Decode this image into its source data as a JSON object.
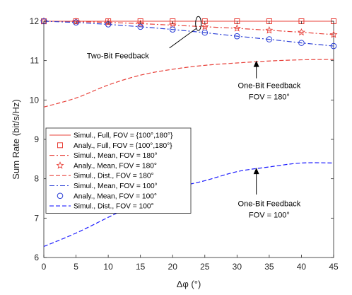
{
  "chart_data": {
    "type": "line",
    "xlabel": "Δφ (°)",
    "ylabel": "Sum Rate (bit/s/Hz)",
    "xlim": [
      0,
      45
    ],
    "ylim": [
      6,
      12
    ],
    "xticks": [
      "0",
      "5",
      "10",
      "15",
      "20",
      "25",
      "30",
      "35",
      "40",
      "45"
    ],
    "yticks": [
      "6",
      "7",
      "8",
      "9",
      "10",
      "11",
      "12"
    ],
    "legend_position": "left",
    "series": [
      {
        "name": "Simul., Full, FOV = {100°,180°}",
        "color": "#e8413a",
        "style": "solid",
        "marker": "none",
        "x": [
          0,
          5,
          10,
          15,
          20,
          25,
          30,
          35,
          40,
          45
        ],
        "y": [
          12,
          12,
          12,
          12,
          12,
          12,
          12,
          12,
          12,
          12
        ]
      },
      {
        "name": "Analy., Full, FOV = {100°,180°}",
        "color": "#e8413a",
        "style": "none",
        "marker": "square",
        "x": [
          0,
          5,
          10,
          15,
          20,
          25,
          30,
          35,
          40,
          45
        ],
        "y": [
          12,
          12,
          12,
          12,
          12,
          12,
          12,
          12,
          12,
          12
        ]
      },
      {
        "name": "Simul., Mean, FOV = 180°",
        "color": "#e8413a",
        "style": "dashdot",
        "marker": "none",
        "x": [
          0,
          5,
          10,
          15,
          20,
          25,
          30,
          35,
          40,
          45
        ],
        "y": [
          12.0,
          11.99,
          11.97,
          11.94,
          11.9,
          11.86,
          11.82,
          11.77,
          11.72,
          11.66
        ]
      },
      {
        "name": "Analy., Mean, FOV = 180°",
        "color": "#e8413a",
        "style": "none",
        "marker": "star",
        "x": [
          0,
          5,
          10,
          15,
          20,
          25,
          30,
          35,
          40,
          45
        ],
        "y": [
          12.0,
          11.99,
          11.97,
          11.94,
          11.9,
          11.86,
          11.82,
          11.77,
          11.72,
          11.66
        ]
      },
      {
        "name": "Simul., Dist., FOV = 180°",
        "color": "#e8413a",
        "style": "dashed",
        "marker": "none",
        "x": [
          0,
          5,
          10,
          15,
          20,
          25,
          30,
          35,
          40,
          45
        ],
        "y": [
          9.82,
          10.05,
          10.38,
          10.63,
          10.78,
          10.88,
          10.94,
          10.99,
          11.02,
          11.03
        ]
      },
      {
        "name": "Simul., Mean, FOV = 100°",
        "color": "#2b3fd6",
        "style": "dashdot",
        "marker": "none",
        "x": [
          0,
          5,
          10,
          15,
          20,
          25,
          30,
          35,
          40,
          45
        ],
        "y": [
          12.0,
          11.97,
          11.92,
          11.86,
          11.79,
          11.71,
          11.62,
          11.54,
          11.45,
          11.37
        ]
      },
      {
        "name": "Analy., Mean, FOV = 100°",
        "color": "#2b3fd6",
        "style": "none",
        "marker": "circle",
        "x": [
          0,
          5,
          10,
          15,
          20,
          25,
          30,
          35,
          40,
          45
        ],
        "y": [
          12.0,
          11.97,
          11.92,
          11.86,
          11.79,
          11.71,
          11.62,
          11.54,
          11.45,
          11.37
        ]
      },
      {
        "name": "Simul., Dist., FOV = 100°",
        "color": "#1a1aff",
        "style": "dashed",
        "marker": "none",
        "x": [
          0,
          5,
          10,
          15,
          20,
          25,
          30,
          35,
          40,
          45
        ],
        "y": [
          6.28,
          6.62,
          7.02,
          7.42,
          7.75,
          7.95,
          8.18,
          8.3,
          8.4,
          8.4
        ]
      }
    ],
    "annotations": [
      {
        "text": [
          "Two-Bit Feedback"
        ],
        "arrow_to": [
          24,
          11.87
        ]
      },
      {
        "text": [
          "One-Bit Feedback",
          "FOV = 180°"
        ],
        "arrow_to": [
          33,
          11.0
        ]
      },
      {
        "text": [
          "One-Bit Feedback",
          "FOV = 100°"
        ],
        "arrow_to": [
          33,
          8.28
        ]
      }
    ]
  }
}
